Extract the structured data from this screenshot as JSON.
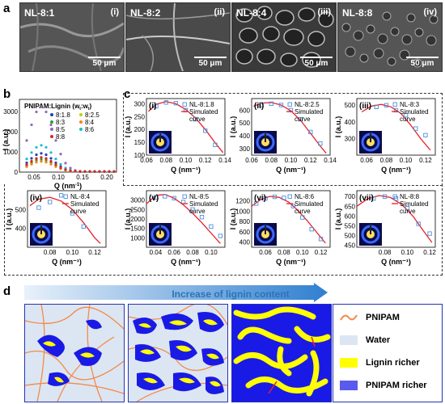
{
  "panels": {
    "a": "a",
    "b": "b",
    "c": "c",
    "d": "d"
  },
  "sem_images": [
    {
      "label": "NL-8:1",
      "roman": "(i)",
      "scale": "50 μm"
    },
    {
      "label": "NL-8:2",
      "roman": "(ii)",
      "scale": "50 μm"
    },
    {
      "label": "NL-8:4",
      "roman": "(iii)",
      "scale": "50 μm"
    },
    {
      "label": "NL-8:8",
      "roman": "(iv)",
      "scale": "50 μm"
    }
  ],
  "colors": {
    "pnipam_line": "#f28a4a",
    "water": "#dce6f2",
    "lignin": "#ffff00",
    "pnipam_richer": "#1a1ae6",
    "scheme_border": "#2433b3",
    "fit": "#e8202a",
    "marker": "#4a90d9"
  },
  "chart_b": {
    "legend_title": "PNIPAM:Lignin (w",
    "legend_title_sub1": "t",
    "legend_title_mid": ":w",
    "legend_title_sub2": "t",
    "legend_title_end": ")",
    "ylabel": "I (a.u.)",
    "xlabel": "Q (nm",
    "xlabel_exp": "-1",
    "xlabel_end": ")",
    "xticks": [
      "0.05",
      "0.10",
      "0.15",
      "0.20"
    ],
    "yticks": [
      "0",
      "1000",
      "2000",
      "3000"
    ],
    "series": [
      {
        "name": "8:1.8",
        "color": "#1f3fbf"
      },
      {
        "name": "8:2.5",
        "color": "#bcd400"
      },
      {
        "name": "8:3",
        "color": "#2ca02c"
      },
      {
        "name": "8:4",
        "color": "#ff7f0e"
      },
      {
        "name": "8:5",
        "color": "#9467bd"
      },
      {
        "name": "8:6",
        "color": "#17becf"
      },
      {
        "name": "8:8",
        "color": "#d62728"
      }
    ]
  },
  "chart_data": [
    {
      "type": "scatter",
      "roman": "(i)",
      "series": [
        {
          "name": "NL-8:1.8"
        },
        {
          "name": "Simulated curve"
        }
      ],
      "x": [
        0.07,
        0.08,
        0.09,
        0.1,
        0.11,
        0.12,
        0.13
      ],
      "y": [
        290,
        305,
        302,
        275,
        240,
        195,
        140
      ],
      "fit_x": [
        0.062,
        0.07,
        0.08,
        0.09,
        0.1,
        0.11,
        0.12,
        0.13,
        0.138
      ],
      "fit_y": [
        270,
        298,
        308,
        300,
        278,
        245,
        200,
        148,
        110
      ],
      "xlim": [
        0.06,
        0.14
      ],
      "ylim": [
        100,
        320
      ],
      "xticks": [
        "0.06",
        "0.08",
        "0.10",
        "0.12",
        "0.14"
      ],
      "yticks": [
        "100",
        "150",
        "200",
        "250",
        "300"
      ],
      "ylabel": "I (a.u.)",
      "xlabel": "Q (nm⁻¹)"
    },
    {
      "type": "scatter",
      "roman": "(ii)",
      "series": [
        {
          "name": "NL-8:2.5"
        },
        {
          "name": "Simulated curve"
        }
      ],
      "x": [
        0.07,
        0.08,
        0.09,
        0.1,
        0.11,
        0.12,
        0.13
      ],
      "y": [
        640,
        650,
        640,
        600,
        530,
        430,
        340
      ],
      "fit_x": [
        0.062,
        0.07,
        0.08,
        0.09,
        0.1,
        0.11,
        0.12,
        0.13,
        0.136
      ],
      "fit_y": [
        630,
        655,
        660,
        640,
        595,
        520,
        420,
        320,
        265
      ],
      "xlim": [
        0.06,
        0.14
      ],
      "ylim": [
        250,
        690
      ],
      "xticks": [
        "0.06",
        "0.08",
        "0.10",
        "0.12",
        "0.14"
      ],
      "yticks": [
        "300",
        "400",
        "500",
        "600"
      ],
      "ylabel": "I (a.u.)",
      "xlabel": "Q (nm⁻¹)"
    },
    {
      "type": "scatter",
      "roman": "(iii)",
      "series": [
        {
          "name": "NL-8:3"
        },
        {
          "name": "Simulated curve"
        }
      ],
      "x": [
        0.07,
        0.08,
        0.09,
        0.1,
        0.11,
        0.12
      ],
      "y": [
        490,
        500,
        470,
        440,
        360,
        320
      ],
      "fit_x": [
        0.055,
        0.065,
        0.075,
        0.085,
        0.095,
        0.105,
        0.115,
        0.125
      ],
      "fit_y": [
        460,
        495,
        505,
        490,
        450,
        380,
        300,
        230
      ],
      "xlim": [
        0.05,
        0.13
      ],
      "ylim": [
        200,
        540
      ],
      "xticks": [
        "0.06",
        "0.08",
        "0.10",
        "0.12"
      ],
      "yticks": [
        "300",
        "400",
        "500"
      ],
      "ylabel": "I (a.u.)",
      "xlabel": "Q (nm⁻¹)"
    },
    {
      "type": "scatter",
      "roman": "(iv)",
      "series": [
        {
          "name": "NL-8:4"
        },
        {
          "name": "Simulated curve"
        }
      ],
      "x": [
        0.07,
        0.08,
        0.09,
        0.1,
        0.11
      ],
      "y": [
        510,
        540,
        575,
        480,
        410
      ],
      "fit_x": [
        0.062,
        0.07,
        0.08,
        0.09,
        0.1,
        0.11,
        0.12,
        0.125
      ],
      "fit_y": [
        520,
        555,
        565,
        545,
        500,
        430,
        350,
        320
      ],
      "xlim": [
        0.06,
        0.13
      ],
      "ylim": [
        300,
        600
      ],
      "xticks": [
        "0.08",
        "0.10",
        "0.12"
      ],
      "yticks": [
        "400",
        "500"
      ],
      "ylabel": "I (a.u.)",
      "xlabel": "Q (nm⁻¹)"
    },
    {
      "type": "scatter",
      "roman": "(v)",
      "series": [
        {
          "name": "NL-8:5"
        },
        {
          "name": "Simulated curve"
        }
      ],
      "x": [
        0.04,
        0.05,
        0.06,
        0.07,
        0.08,
        0.09,
        0.1,
        0.11
      ],
      "y": [
        3150,
        3200,
        3100,
        2900,
        2500,
        2100,
        1600,
        1100
      ],
      "fit_x": [
        0.03,
        0.04,
        0.05,
        0.06,
        0.07,
        0.08,
        0.09,
        0.1,
        0.11
      ],
      "fit_y": [
        2800,
        3250,
        3300,
        3100,
        2750,
        2300,
        1800,
        1250,
        700
      ],
      "xlim": [
        0.03,
        0.115
      ],
      "ylim": [
        500,
        3500
      ],
      "xticks": [
        "0.04",
        "0.06",
        "0.08",
        "0.10"
      ],
      "yticks": [
        "1000",
        "1500",
        "2000",
        "2500",
        "3000"
      ],
      "ylabel": "I (a.u.)",
      "xlabel": "Q (nm⁻¹)"
    },
    {
      "type": "scatter",
      "roman": "(vi)",
      "series": [
        {
          "name": "NL-8:6"
        },
        {
          "name": "Simulated curve"
        }
      ],
      "x": [
        0.05,
        0.06,
        0.07,
        0.08,
        0.09,
        0.1,
        0.11,
        0.12
      ],
      "y": [
        1150,
        1250,
        1280,
        1260,
        1100,
        880,
        650,
        460
      ],
      "fit_x": [
        0.045,
        0.055,
        0.065,
        0.075,
        0.085,
        0.095,
        0.105,
        0.115,
        0.125
      ],
      "fit_y": [
        1100,
        1230,
        1290,
        1270,
        1180,
        1020,
        820,
        600,
        380
      ],
      "xlim": [
        0.045,
        0.13
      ],
      "ylim": [
        300,
        1400
      ],
      "xticks": [
        "0.06",
        "0.08",
        "0.10",
        "0.12"
      ],
      "yticks": [
        "400",
        "600",
        "800",
        "1000",
        "1200"
      ],
      "ylabel": "I (a.u.)",
      "xlabel": "Q (nm⁻¹)"
    },
    {
      "type": "scatter",
      "roman": "(vii)",
      "series": [
        {
          "name": "NL-8:8"
        },
        {
          "name": "Simulated curve"
        }
      ],
      "x": [
        0.07,
        0.08,
        0.09,
        0.1,
        0.11,
        0.12
      ],
      "y": [
        690,
        700,
        690,
        640,
        560,
        510
      ],
      "fit_x": [
        0.055,
        0.065,
        0.075,
        0.085,
        0.095,
        0.105,
        0.115,
        0.122
      ],
      "fit_y": [
        650,
        690,
        705,
        695,
        660,
        600,
        520,
        465
      ],
      "xlim": [
        0.055,
        0.125
      ],
      "ylim": [
        440,
        730
      ],
      "xticks": [
        "0.08",
        "0.10",
        "0.12"
      ],
      "yticks": [
        "450",
        "500",
        "550",
        "600",
        "650",
        "700"
      ],
      "ylabel": "I (a.u.)",
      "xlabel": "Q (nm⁻¹)"
    }
  ],
  "panel_d": {
    "arrow_label": "Increase of lignin content",
    "legend": [
      {
        "label": "PNIPAM"
      },
      {
        "label": "Water"
      },
      {
        "label": "Lignin richer"
      },
      {
        "label": "PNIPAM richer"
      }
    ]
  }
}
